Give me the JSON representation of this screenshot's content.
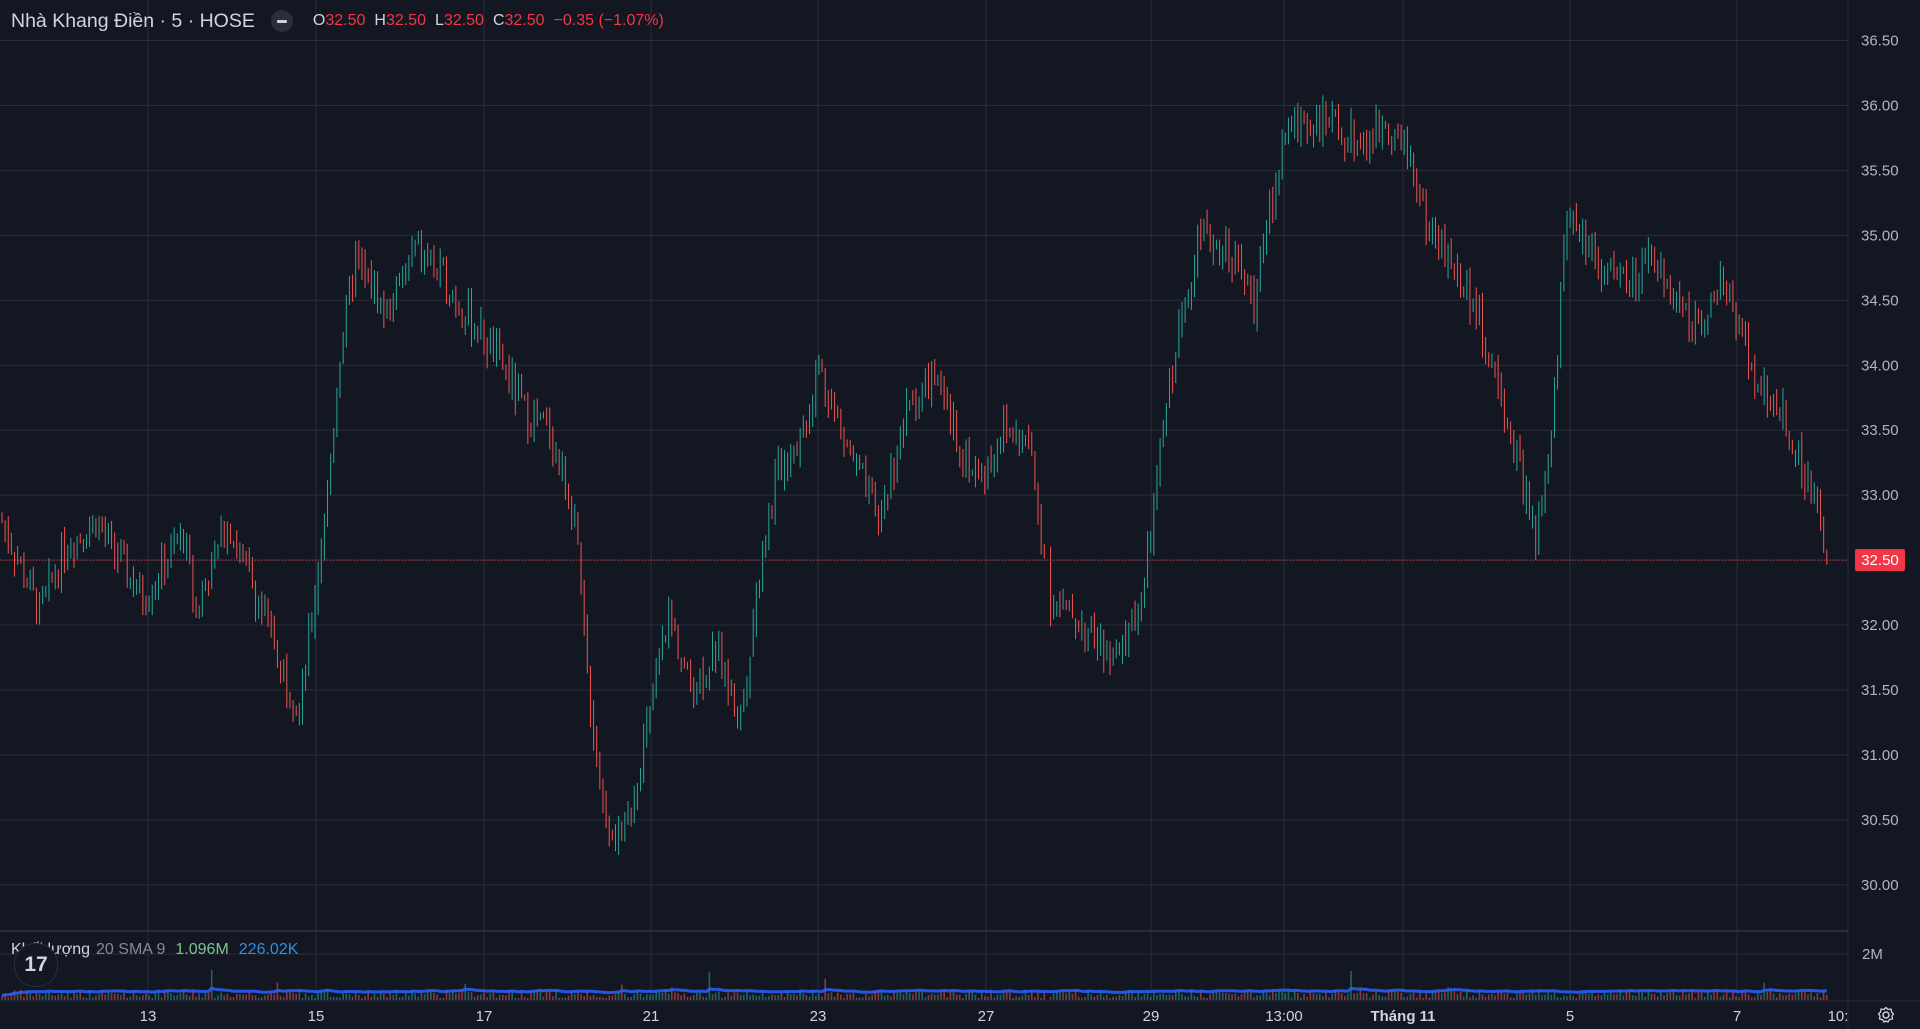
{
  "symbol": {
    "title": "Nhà Khang Điền · 5 · HOSE",
    "open_label": "O",
    "open": "32.50",
    "high_label": "H",
    "high": "32.50",
    "low_label": "L",
    "low": "32.50",
    "close_label": "C",
    "close": "32.50",
    "change": "−0.35 (−1.07%)"
  },
  "volume_legend": {
    "title": "Khối lượng",
    "params": "20 SMA 9",
    "volume": "1.096M",
    "sma": "226.02K"
  },
  "logo_text": "17",
  "icons": {
    "collapse": "minus-icon",
    "settings": "gear-icon",
    "logo": "tradingview-logo"
  },
  "colors": {
    "up": "#26a69a",
    "down": "#ef5350",
    "price_tag": "#f23645",
    "sma": "#2962ff",
    "background": "#131722",
    "grid": "#2a2e39"
  },
  "chart_data": {
    "type": "candlestick",
    "interval": "5",
    "price_axis": {
      "min": 30.0,
      "max": 36.5,
      "ticks": [
        "36.50",
        "36.00",
        "35.50",
        "35.00",
        "34.50",
        "34.00",
        "33.50",
        "33.00",
        "32.50",
        "32.00",
        "31.50",
        "31.00",
        "30.50",
        "30.00"
      ]
    },
    "last_price_label": "32.50",
    "volume_axis": {
      "ticks": [
        "2M"
      ]
    },
    "time_axis": {
      "ticks": [
        "13",
        "15",
        "17",
        "21",
        "23",
        "27",
        "29",
        "13:00",
        "Tháng 11",
        "5",
        "7",
        "10:"
      ]
    },
    "series": [
      {
        "name": "price",
        "approx_path": [
          [
            0,
            32.8
          ],
          [
            12,
            32.1
          ],
          [
            20,
            32.6
          ],
          [
            30,
            32.8
          ],
          [
            45,
            32.2
          ],
          [
            58,
            32.7
          ],
          [
            62,
            32.1
          ],
          [
            72,
            32.8
          ],
          [
            88,
            31.8
          ],
          [
            95,
            31.3
          ],
          [
            104,
            33.0
          ],
          [
            108,
            34.1
          ],
          [
            113,
            34.8
          ],
          [
            123,
            34.4
          ],
          [
            132,
            34.9
          ],
          [
            140,
            34.7
          ],
          [
            148,
            34.4
          ],
          [
            160,
            34.0
          ],
          [
            168,
            33.6
          ],
          [
            175,
            33.5
          ],
          [
            183,
            32.8
          ],
          [
            187,
            31.6
          ],
          [
            192,
            30.6
          ],
          [
            198,
            30.3
          ],
          [
            207,
            31.3
          ],
          [
            213,
            32.1
          ],
          [
            220,
            31.5
          ],
          [
            228,
            31.8
          ],
          [
            236,
            31.3
          ],
          [
            243,
            32.6
          ],
          [
            248,
            33.2
          ],
          [
            256,
            33.5
          ],
          [
            261,
            34.0
          ],
          [
            268,
            33.5
          ],
          [
            280,
            32.8
          ],
          [
            290,
            33.7
          ],
          [
            298,
            33.9
          ],
          [
            302,
            33.6
          ],
          [
            312,
            33.1
          ],
          [
            320,
            33.5
          ],
          [
            328,
            33.4
          ],
          [
            335,
            32.2
          ],
          [
            345,
            32.0
          ],
          [
            356,
            31.7
          ],
          [
            365,
            32.3
          ],
          [
            372,
            33.7
          ],
          [
            378,
            34.5
          ],
          [
            382,
            35.0
          ],
          [
            392,
            34.9
          ],
          [
            400,
            34.5
          ],
          [
            410,
            35.8
          ],
          [
            416,
            35.9
          ],
          [
            428,
            35.8
          ],
          [
            436,
            35.7
          ],
          [
            442,
            35.9
          ],
          [
            450,
            35.6
          ],
          [
            455,
            35.1
          ],
          [
            460,
            34.9
          ],
          [
            470,
            34.5
          ],
          [
            478,
            33.8
          ],
          [
            485,
            33.2
          ],
          [
            490,
            32.6
          ],
          [
            495,
            33.4
          ],
          [
            500,
            35.2
          ],
          [
            510,
            34.8
          ],
          [
            520,
            34.6
          ],
          [
            528,
            34.8
          ],
          [
            540,
            34.3
          ],
          [
            550,
            34.6
          ],
          [
            556,
            34.3
          ],
          [
            560,
            33.9
          ],
          [
            570,
            33.6
          ],
          [
            575,
            33.2
          ],
          [
            580,
            32.9
          ],
          [
            583,
            32.5
          ]
        ]
      },
      {
        "name": "Khối lượng",
        "note": "volume histogram with 20 SMA 9 line"
      }
    ],
    "gaps": [
      [
        333,
        335
      ]
    ],
    "grid": true
  }
}
